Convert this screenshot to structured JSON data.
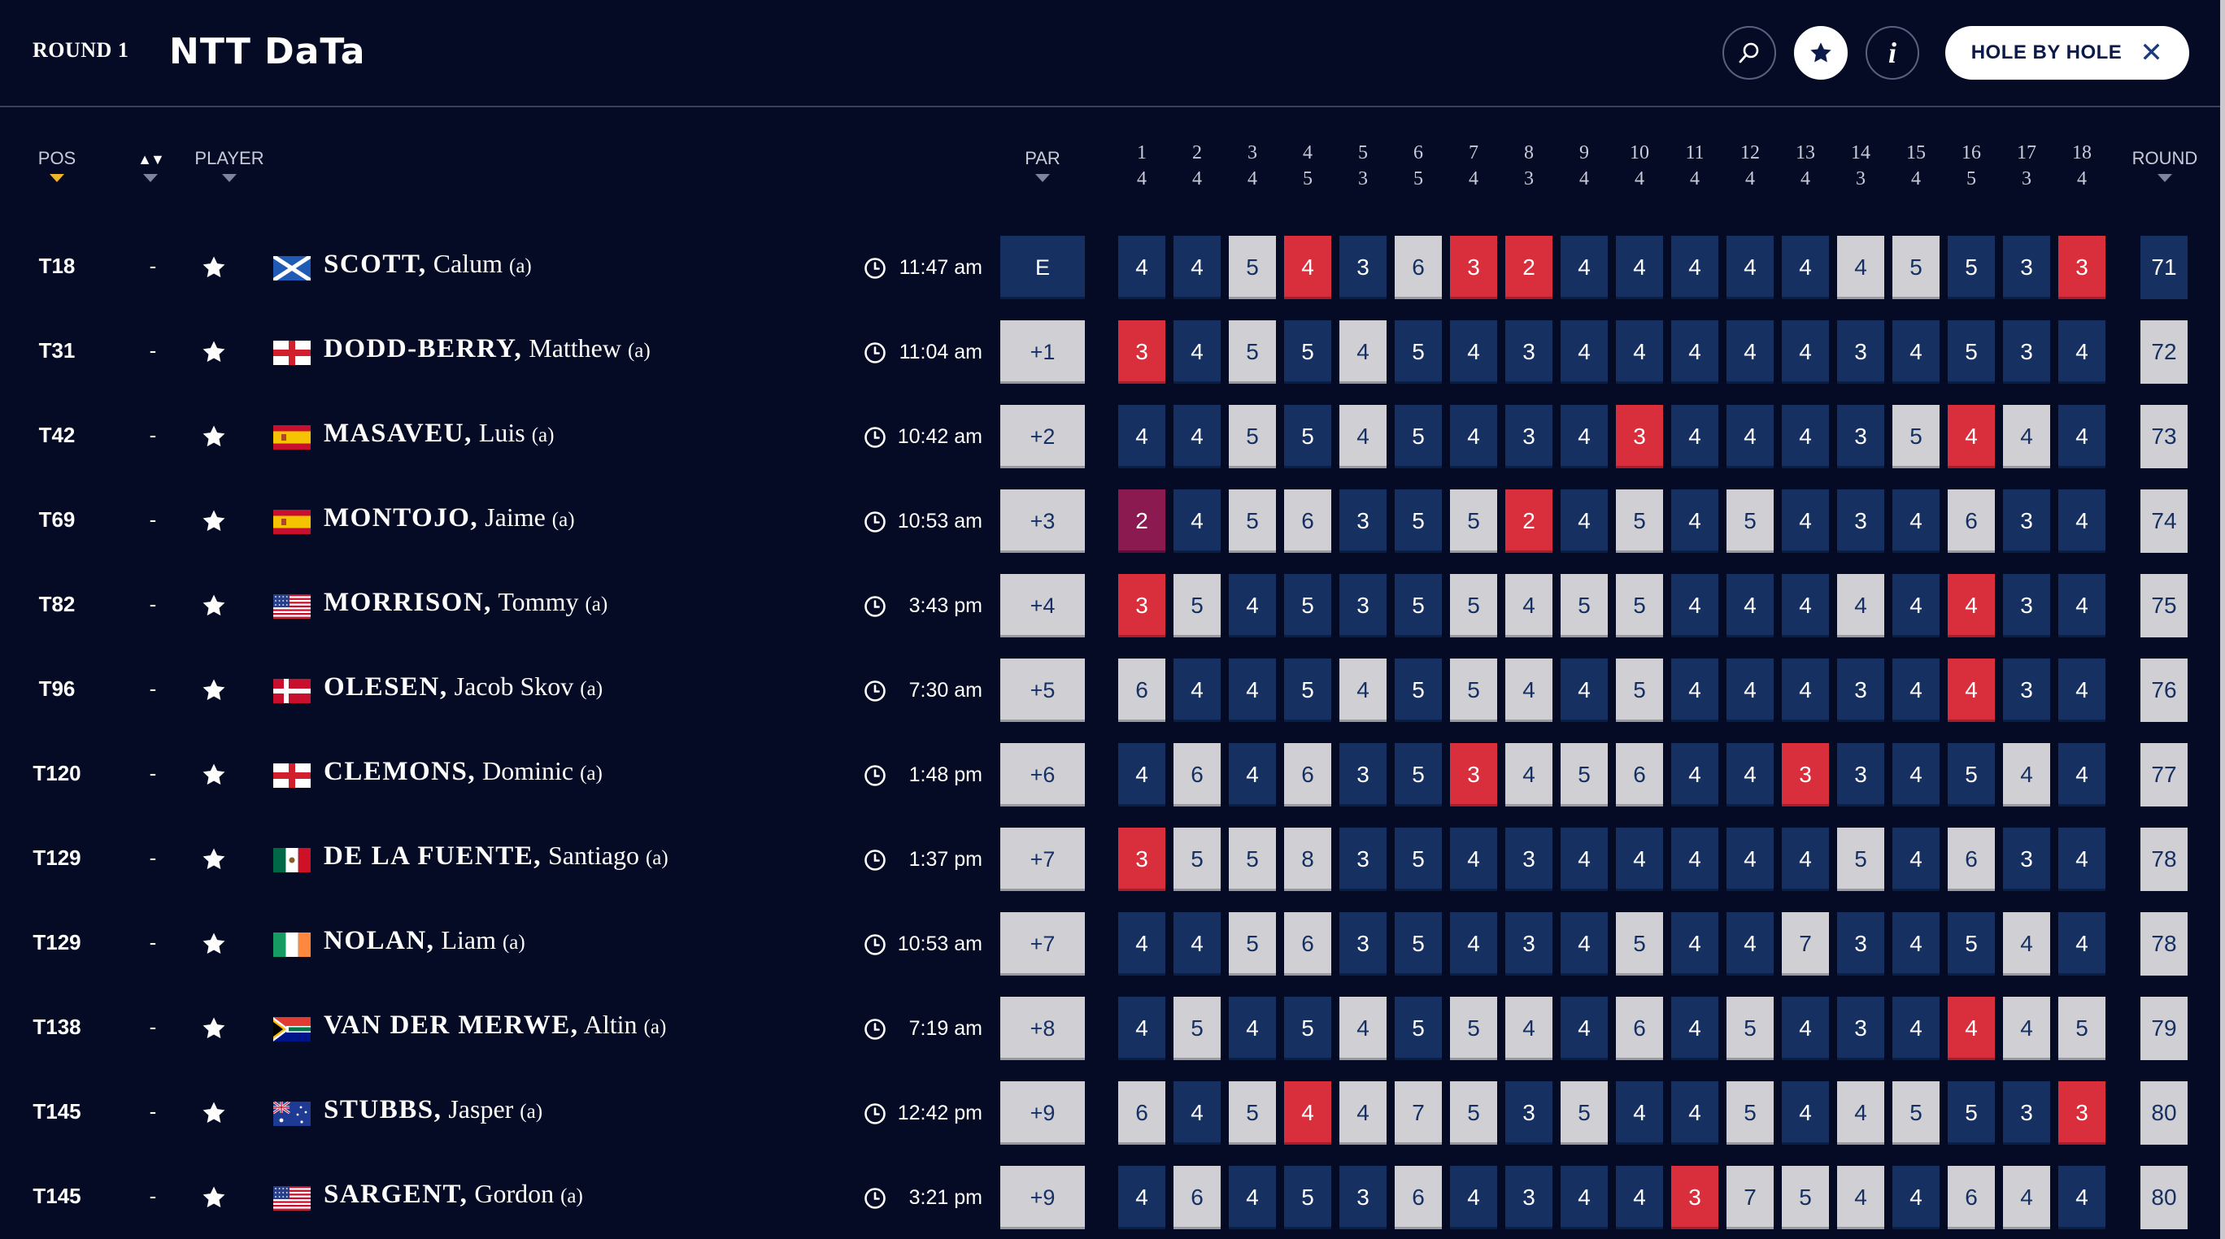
{
  "header": {
    "round_label": "ROUND 1",
    "logo_text": "NTT DaTa",
    "hole_by_hole_label": "HOLE BY HOLE",
    "close_glyph": "✕",
    "info_glyph": "i"
  },
  "columns": {
    "pos": "POS",
    "player": "PLAYER",
    "par": "PAR",
    "round": "ROUND",
    "sort_glyph": "▲▼"
  },
  "holes": [
    {
      "n": "1",
      "par": "4"
    },
    {
      "n": "2",
      "par": "4"
    },
    {
      "n": "3",
      "par": "4"
    },
    {
      "n": "4",
      "par": "5"
    },
    {
      "n": "5",
      "par": "3"
    },
    {
      "n": "6",
      "par": "5"
    },
    {
      "n": "7",
      "par": "4"
    },
    {
      "n": "8",
      "par": "3"
    },
    {
      "n": "9",
      "par": "4"
    },
    {
      "n": "10",
      "par": "4"
    },
    {
      "n": "11",
      "par": "4"
    },
    {
      "n": "12",
      "par": "4"
    },
    {
      "n": "13",
      "par": "4"
    },
    {
      "n": "14",
      "par": "3"
    },
    {
      "n": "15",
      "par": "4"
    },
    {
      "n": "16",
      "par": "5"
    },
    {
      "n": "17",
      "par": "3"
    },
    {
      "n": "18",
      "par": "4"
    }
  ],
  "players": [
    {
      "pos": "T18",
      "move": "-",
      "flag": "scotland",
      "last": "SCOTT,",
      "first": "Calum",
      "amateur": "(a)",
      "tee_time": "11:47 am",
      "to_par": "E",
      "round": "71",
      "scores": [
        "4",
        "4",
        "5",
        "4",
        "3",
        "6",
        "3",
        "2",
        "4",
        "4",
        "4",
        "4",
        "4",
        "4",
        "5",
        "5",
        "3",
        "3"
      ]
    },
    {
      "pos": "T31",
      "move": "-",
      "flag": "england",
      "last": "DODD-BERRY,",
      "first": "Matthew",
      "amateur": "(a)",
      "tee_time": "11:04 am",
      "to_par": "+1",
      "round": "72",
      "scores": [
        "3",
        "4",
        "5",
        "5",
        "4",
        "5",
        "4",
        "3",
        "4",
        "4",
        "4",
        "4",
        "4",
        "3",
        "4",
        "5",
        "3",
        "4"
      ]
    },
    {
      "pos": "T42",
      "move": "-",
      "flag": "spain",
      "last": "MASAVEU,",
      "first": "Luis",
      "amateur": "(a)",
      "tee_time": "10:42 am",
      "to_par": "+2",
      "round": "73",
      "scores": [
        "4",
        "4",
        "5",
        "5",
        "4",
        "5",
        "4",
        "3",
        "4",
        "3",
        "4",
        "4",
        "4",
        "3",
        "5",
        "4",
        "4",
        "4"
      ]
    },
    {
      "pos": "T69",
      "move": "-",
      "flag": "spain",
      "last": "MONTOJO,",
      "first": "Jaime",
      "amateur": "(a)",
      "tee_time": "10:53 am",
      "to_par": "+3",
      "round": "74",
      "scores": [
        "2",
        "4",
        "5",
        "6",
        "3",
        "5",
        "5",
        "2",
        "4",
        "5",
        "4",
        "5",
        "4",
        "3",
        "4",
        "6",
        "3",
        "4"
      ]
    },
    {
      "pos": "T82",
      "move": "-",
      "flag": "usa",
      "last": "MORRISON,",
      "first": "Tommy",
      "amateur": "(a)",
      "tee_time": "3:43 pm",
      "to_par": "+4",
      "round": "75",
      "scores": [
        "3",
        "5",
        "4",
        "5",
        "3",
        "5",
        "5",
        "4",
        "5",
        "5",
        "4",
        "4",
        "4",
        "4",
        "4",
        "4",
        "3",
        "4"
      ]
    },
    {
      "pos": "T96",
      "move": "-",
      "flag": "denmark",
      "last": "OLESEN,",
      "first": "Jacob Skov",
      "amateur": "(a)",
      "tee_time": "7:30 am",
      "to_par": "+5",
      "round": "76",
      "scores": [
        "6",
        "4",
        "4",
        "5",
        "4",
        "5",
        "5",
        "4",
        "4",
        "5",
        "4",
        "4",
        "4",
        "3",
        "4",
        "4",
        "3",
        "4"
      ]
    },
    {
      "pos": "T120",
      "move": "-",
      "flag": "england",
      "last": "CLEMONS,",
      "first": "Dominic",
      "amateur": "(a)",
      "tee_time": "1:48 pm",
      "to_par": "+6",
      "round": "77",
      "scores": [
        "4",
        "6",
        "4",
        "6",
        "3",
        "5",
        "3",
        "4",
        "5",
        "6",
        "4",
        "4",
        "3",
        "3",
        "4",
        "5",
        "4",
        "4"
      ]
    },
    {
      "pos": "T129",
      "move": "-",
      "flag": "mexico",
      "last": "DE LA FUENTE,",
      "first": "Santiago",
      "amateur": "(a)",
      "tee_time": "1:37 pm",
      "to_par": "+7",
      "round": "78",
      "scores": [
        "3",
        "5",
        "5",
        "8",
        "3",
        "5",
        "4",
        "3",
        "4",
        "4",
        "4",
        "4",
        "4",
        "5",
        "4",
        "6",
        "3",
        "4"
      ]
    },
    {
      "pos": "T129",
      "move": "-",
      "flag": "ireland",
      "last": "NOLAN,",
      "first": "Liam",
      "amateur": "(a)",
      "tee_time": "10:53 am",
      "to_par": "+7",
      "round": "78",
      "scores": [
        "4",
        "4",
        "5",
        "6",
        "3",
        "5",
        "4",
        "3",
        "4",
        "5",
        "4",
        "4",
        "7",
        "3",
        "4",
        "5",
        "4",
        "4"
      ]
    },
    {
      "pos": "T138",
      "move": "-",
      "flag": "southafrica",
      "last": "VAN DER MERWE,",
      "first": "Altin",
      "amateur": "(a)",
      "tee_time": "7:19 am",
      "to_par": "+8",
      "round": "79",
      "scores": [
        "4",
        "5",
        "4",
        "5",
        "4",
        "5",
        "5",
        "4",
        "4",
        "6",
        "4",
        "5",
        "4",
        "3",
        "4",
        "4",
        "4",
        "5"
      ]
    },
    {
      "pos": "T145",
      "move": "-",
      "flag": "australia",
      "last": "STUBBS,",
      "first": "Jasper",
      "amateur": "(a)",
      "tee_time": "12:42 pm",
      "to_par": "+9",
      "round": "80",
      "scores": [
        "6",
        "4",
        "5",
        "4",
        "4",
        "7",
        "5",
        "3",
        "5",
        "4",
        "4",
        "5",
        "4",
        "4",
        "5",
        "5",
        "3",
        "3"
      ]
    },
    {
      "pos": "T145",
      "move": "-",
      "flag": "usa",
      "last": "SARGENT,",
      "first": "Gordon",
      "amateur": "(a)",
      "tee_time": "3:21 pm",
      "to_par": "+9",
      "round": "80",
      "scores": [
        "4",
        "6",
        "4",
        "5",
        "3",
        "6",
        "4",
        "3",
        "4",
        "4",
        "3",
        "7",
        "5",
        "4",
        "4",
        "6",
        "4",
        "4"
      ]
    }
  ],
  "colors": {
    "background": "#050a25",
    "par": "#163062",
    "bogey": "#d0d0d4",
    "birdie": "#d92e3c",
    "eagle": "#8a1a50",
    "sort_active": "#f0b429"
  }
}
